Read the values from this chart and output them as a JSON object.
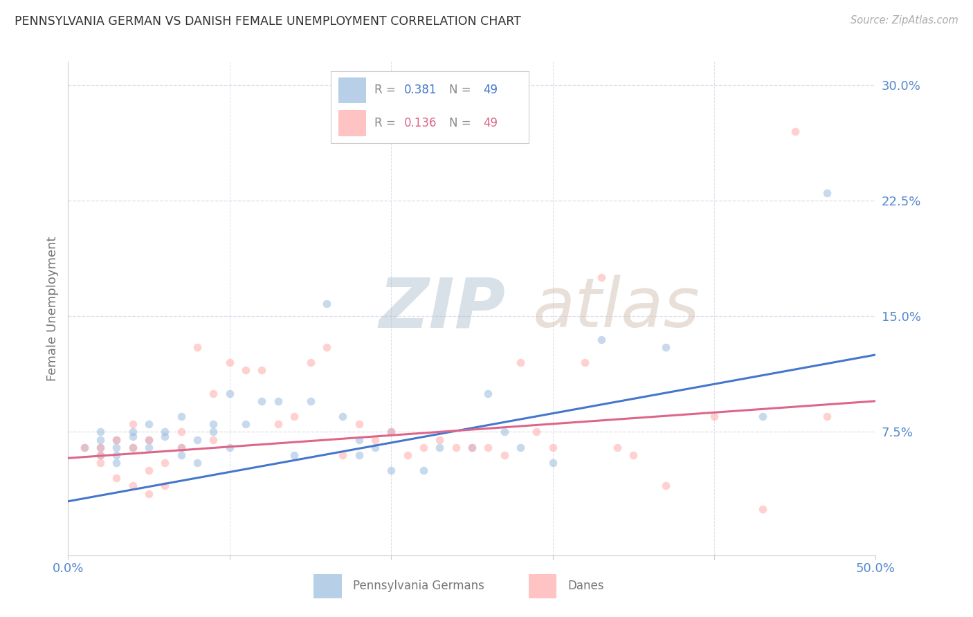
{
  "title": "PENNSYLVANIA GERMAN VS DANISH FEMALE UNEMPLOYMENT CORRELATION CHART",
  "source": "Source: ZipAtlas.com",
  "ylabel": "Female Unemployment",
  "xlim": [
    0.0,
    0.5
  ],
  "ylim": [
    -0.005,
    0.315
  ],
  "yticks": [
    0.075,
    0.15,
    0.225,
    0.3
  ],
  "ytick_labels": [
    "7.5%",
    "15.0%",
    "22.5%",
    "30.0%"
  ],
  "legend_blue_R": "0.381",
  "legend_blue_N": "49",
  "legend_pink_R": "0.136",
  "legend_pink_N": "49",
  "blue_color": "#99BBDD",
  "pink_color": "#FFAAAA",
  "blue_line_color": "#4477CC",
  "pink_line_color": "#DD6688",
  "axis_label_color": "#5588CC",
  "title_color": "#333333",
  "grid_color": "#DDDDEE",
  "watermark_zip_color": "#BBCCDD",
  "watermark_atlas_color": "#DDCCBB",
  "blue_scatter_x": [
    0.01,
    0.02,
    0.02,
    0.02,
    0.02,
    0.03,
    0.03,
    0.03,
    0.03,
    0.04,
    0.04,
    0.04,
    0.05,
    0.05,
    0.05,
    0.06,
    0.06,
    0.07,
    0.07,
    0.07,
    0.08,
    0.08,
    0.09,
    0.09,
    0.1,
    0.1,
    0.11,
    0.12,
    0.13,
    0.14,
    0.15,
    0.16,
    0.17,
    0.18,
    0.18,
    0.19,
    0.2,
    0.2,
    0.22,
    0.23,
    0.25,
    0.26,
    0.27,
    0.28,
    0.3,
    0.33,
    0.37,
    0.43,
    0.47
  ],
  "blue_scatter_y": [
    0.065,
    0.065,
    0.07,
    0.075,
    0.06,
    0.07,
    0.065,
    0.06,
    0.055,
    0.072,
    0.075,
    0.065,
    0.07,
    0.08,
    0.065,
    0.072,
    0.075,
    0.065,
    0.06,
    0.085,
    0.07,
    0.055,
    0.075,
    0.08,
    0.065,
    0.1,
    0.08,
    0.095,
    0.095,
    0.06,
    0.095,
    0.158,
    0.085,
    0.06,
    0.07,
    0.065,
    0.075,
    0.05,
    0.05,
    0.065,
    0.065,
    0.1,
    0.075,
    0.065,
    0.055,
    0.135,
    0.13,
    0.085,
    0.23
  ],
  "pink_scatter_x": [
    0.01,
    0.02,
    0.02,
    0.02,
    0.03,
    0.03,
    0.04,
    0.04,
    0.04,
    0.05,
    0.05,
    0.05,
    0.06,
    0.06,
    0.07,
    0.07,
    0.08,
    0.09,
    0.09,
    0.1,
    0.11,
    0.12,
    0.13,
    0.14,
    0.15,
    0.16,
    0.17,
    0.18,
    0.19,
    0.2,
    0.21,
    0.22,
    0.23,
    0.24,
    0.25,
    0.26,
    0.27,
    0.28,
    0.29,
    0.3,
    0.32,
    0.33,
    0.34,
    0.35,
    0.37,
    0.4,
    0.43,
    0.45,
    0.47
  ],
  "pink_scatter_y": [
    0.065,
    0.065,
    0.06,
    0.055,
    0.07,
    0.045,
    0.08,
    0.065,
    0.04,
    0.07,
    0.05,
    0.035,
    0.055,
    0.04,
    0.075,
    0.065,
    0.13,
    0.07,
    0.1,
    0.12,
    0.115,
    0.115,
    0.08,
    0.085,
    0.12,
    0.13,
    0.06,
    0.08,
    0.07,
    0.075,
    0.06,
    0.065,
    0.07,
    0.065,
    0.065,
    0.065,
    0.06,
    0.12,
    0.075,
    0.065,
    0.12,
    0.175,
    0.065,
    0.06,
    0.04,
    0.085,
    0.025,
    0.27,
    0.085
  ],
  "blue_line_x": [
    0.0,
    0.5
  ],
  "blue_line_y": [
    0.03,
    0.125
  ],
  "pink_line_x": [
    0.0,
    0.5
  ],
  "pink_line_y": [
    0.058,
    0.095
  ],
  "marker_size": 70,
  "marker_alpha": 0.55
}
